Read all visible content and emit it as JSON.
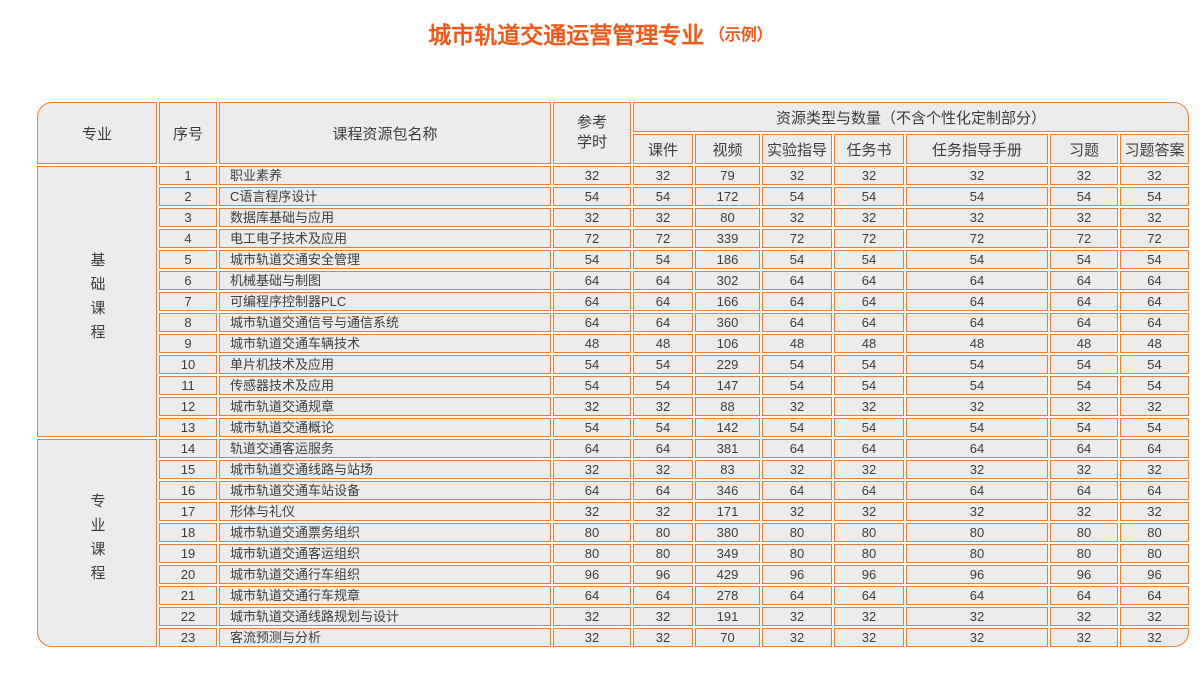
{
  "title": {
    "main": "城市轨道交通运营管理专业",
    "note": "（示例）"
  },
  "colors": {
    "title_accent": "#f1591a",
    "table_border": "#ed7d31",
    "cell_background": "#ececec",
    "text": "#3c3c3c"
  },
  "table": {
    "headers": {
      "major": "专业",
      "index": "序号",
      "course": "课程资源包名称",
      "hours": "参考学时",
      "resource_group": "资源类型与数量（不含个性化定制部分）",
      "resource_cols": [
        "课件",
        "视频",
        "实验指导",
        "任务书",
        "任务指导手册",
        "习题",
        "习题答案"
      ]
    },
    "groups": [
      {
        "label": "基础课程",
        "rows": [
          {
            "no": 1,
            "name": "职业素养",
            "hours": 32,
            "values": [
              32,
              79,
              32,
              32,
              32,
              32,
              32
            ]
          },
          {
            "no": 2,
            "name": "C语言程序设计",
            "hours": 54,
            "values": [
              54,
              172,
              54,
              54,
              54,
              54,
              54
            ]
          },
          {
            "no": 3,
            "name": "数据库基础与应用",
            "hours": 32,
            "values": [
              32,
              80,
              32,
              32,
              32,
              32,
              32
            ]
          },
          {
            "no": 4,
            "name": "电工电子技术及应用",
            "hours": 72,
            "values": [
              72,
              339,
              72,
              72,
              72,
              72,
              72
            ]
          },
          {
            "no": 5,
            "name": "城市轨道交通安全管理",
            "hours": 54,
            "values": [
              54,
              186,
              54,
              54,
              54,
              54,
              54
            ]
          },
          {
            "no": 6,
            "name": "机械基础与制图",
            "hours": 64,
            "values": [
              64,
              302,
              64,
              64,
              64,
              64,
              64
            ]
          },
          {
            "no": 7,
            "name": "可编程序控制器PLC",
            "hours": 64,
            "values": [
              64,
              166,
              64,
              64,
              64,
              64,
              64
            ]
          },
          {
            "no": 8,
            "name": "城市轨道交通信号与通信系统",
            "hours": 64,
            "values": [
              64,
              360,
              64,
              64,
              64,
              64,
              64
            ]
          },
          {
            "no": 9,
            "name": "城市轨道交通车辆技术",
            "hours": 48,
            "values": [
              48,
              106,
              48,
              48,
              48,
              48,
              48
            ]
          },
          {
            "no": 10,
            "name": "单片机技术及应用",
            "hours": 54,
            "values": [
              54,
              229,
              54,
              54,
              54,
              54,
              54
            ]
          },
          {
            "no": 11,
            "name": "传感器技术及应用",
            "hours": 54,
            "values": [
              54,
              147,
              54,
              54,
              54,
              54,
              54
            ]
          },
          {
            "no": 12,
            "name": "城市轨道交通规章",
            "hours": 32,
            "values": [
              32,
              88,
              32,
              32,
              32,
              32,
              32
            ]
          },
          {
            "no": 13,
            "name": "城市轨道交通概论",
            "hours": 54,
            "values": [
              54,
              142,
              54,
              54,
              54,
              54,
              54
            ]
          }
        ]
      },
      {
        "label": "专业课程",
        "rows": [
          {
            "no": 14,
            "name": "轨道交通客运服务",
            "hours": 64,
            "values": [
              64,
              381,
              64,
              64,
              64,
              64,
              64
            ]
          },
          {
            "no": 15,
            "name": "城市轨道交通线路与站场",
            "hours": 32,
            "values": [
              32,
              83,
              32,
              32,
              32,
              32,
              32
            ]
          },
          {
            "no": 16,
            "name": "城市轨道交通车站设备",
            "hours": 64,
            "values": [
              64,
              346,
              64,
              64,
              64,
              64,
              64
            ]
          },
          {
            "no": 17,
            "name": "形体与礼仪",
            "hours": 32,
            "values": [
              32,
              171,
              32,
              32,
              32,
              32,
              32
            ]
          },
          {
            "no": 18,
            "name": "城市轨道交通票务组织",
            "hours": 80,
            "values": [
              80,
              380,
              80,
              80,
              80,
              80,
              80
            ]
          },
          {
            "no": 19,
            "name": "城市轨道交通客运组织",
            "hours": 80,
            "values": [
              80,
              349,
              80,
              80,
              80,
              80,
              80
            ]
          },
          {
            "no": 20,
            "name": "城市轨道交通行车组织",
            "hours": 96,
            "values": [
              96,
              429,
              96,
              96,
              96,
              96,
              96
            ]
          },
          {
            "no": 21,
            "name": "城市轨道交通行车规章",
            "hours": 64,
            "values": [
              64,
              278,
              64,
              64,
              64,
              64,
              64
            ]
          },
          {
            "no": 22,
            "name": "城市轨道交通线路规划与设计",
            "hours": 32,
            "values": [
              32,
              191,
              32,
              32,
              32,
              32,
              32
            ]
          },
          {
            "no": 23,
            "name": "客流预测与分析",
            "hours": 32,
            "values": [
              32,
              70,
              32,
              32,
              32,
              32,
              32
            ]
          }
        ]
      }
    ]
  }
}
